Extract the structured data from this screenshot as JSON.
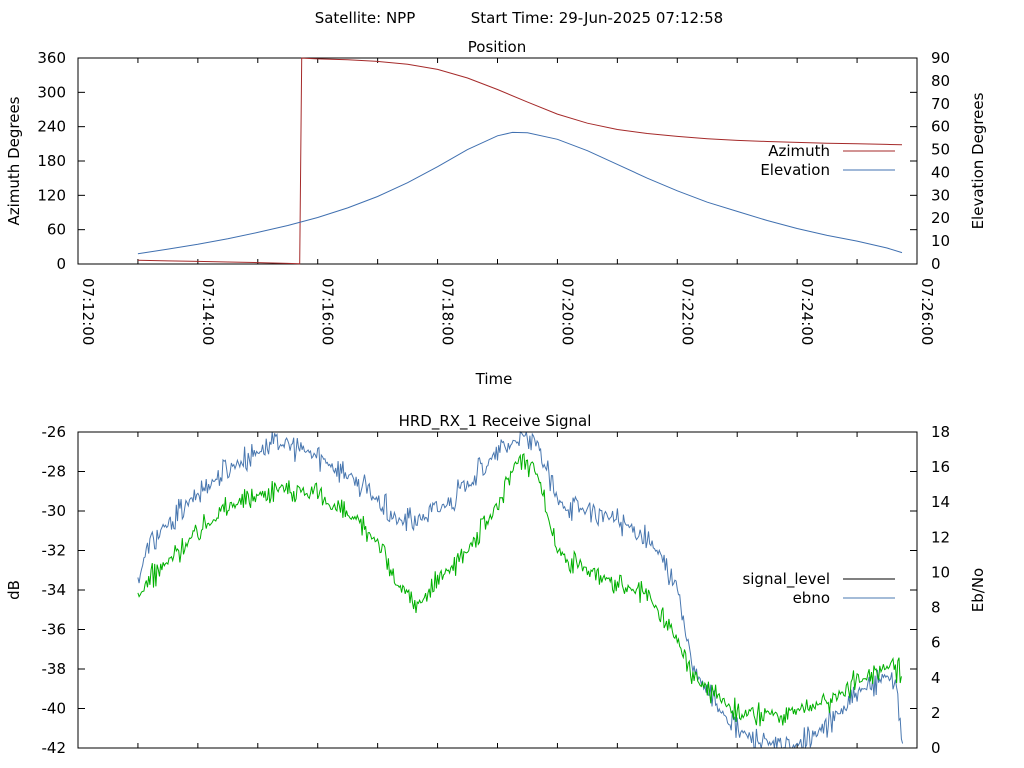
{
  "header": {
    "satellite": "Satellite: NPP",
    "start_time": "Start Time: 29-Jun-2025 07:12:58"
  },
  "chart_data": [
    {
      "type": "line",
      "title": "Position",
      "xlabel": "Time",
      "ylabel": "Azimuth Degrees",
      "y2label": "Elevation Degrees",
      "xlim": [
        "07:12:00",
        "07:26:00"
      ],
      "x_ticks": [
        "07:12:00",
        "07:14:00",
        "07:16:00",
        "07:18:00",
        "07:20:00",
        "07:22:00",
        "07:24:00",
        "07:26:00"
      ],
      "ylim": [
        0,
        360
      ],
      "y_ticks": [
        0,
        60,
        120,
        180,
        240,
        300,
        360
      ],
      "y2lim": [
        0,
        90
      ],
      "y2_ticks": [
        0,
        10,
        20,
        30,
        40,
        50,
        60,
        70,
        80,
        90
      ],
      "grid": false,
      "legend": "right",
      "series": [
        {
          "name": "Azimuth",
          "axis": "y",
          "color": "#a52a2a",
          "points": [
            [
              "07:13:00",
              6.5
            ],
            [
              "07:13:30",
              5.5
            ],
            [
              "07:14:00",
              4.5
            ],
            [
              "07:14:30",
              3.5
            ],
            [
              "07:15:00",
              2.5
            ],
            [
              "07:15:30",
              1.0
            ],
            [
              "07:15:42",
              0.5
            ],
            [
              "07:15:44",
              359.8
            ],
            [
              "07:16:00",
              358.5
            ],
            [
              "07:16:30",
              357
            ],
            [
              "07:17:00",
              354
            ],
            [
              "07:17:30",
              349
            ],
            [
              "07:18:00",
              340
            ],
            [
              "07:18:30",
              325
            ],
            [
              "07:19:00",
              305
            ],
            [
              "07:19:30",
              283
            ],
            [
              "07:20:00",
              262
            ],
            [
              "07:20:30",
              246
            ],
            [
              "07:21:00",
              235
            ],
            [
              "07:21:30",
              228
            ],
            [
              "07:22:00",
              223
            ],
            [
              "07:22:30",
              219
            ],
            [
              "07:23:00",
              216
            ],
            [
              "07:23:30",
              214
            ],
            [
              "07:24:00",
              212.5
            ],
            [
              "07:24:30",
              211
            ],
            [
              "07:25:00",
              210
            ],
            [
              "07:25:30",
              209
            ],
            [
              "07:25:45",
              208.5
            ]
          ]
        },
        {
          "name": "Elevation",
          "axis": "y2",
          "color": "#4070b0",
          "points": [
            [
              "07:13:00",
              4.5
            ],
            [
              "07:13:30",
              6.5
            ],
            [
              "07:14:00",
              8.6
            ],
            [
              "07:14:30",
              11
            ],
            [
              "07:15:00",
              13.8
            ],
            [
              "07:15:30",
              16.8
            ],
            [
              "07:16:00",
              20.3
            ],
            [
              "07:16:30",
              24.5
            ],
            [
              "07:17:00",
              29.5
            ],
            [
              "07:17:30",
              35.5
            ],
            [
              "07:18:00",
              42.5
            ],
            [
              "07:18:30",
              50
            ],
            [
              "07:19:00",
              56
            ],
            [
              "07:19:15",
              57.5
            ],
            [
              "07:19:30",
              57.3
            ],
            [
              "07:20:00",
              54.5
            ],
            [
              "07:20:30",
              49.5
            ],
            [
              "07:21:00",
              43.5
            ],
            [
              "07:21:30",
              37.5
            ],
            [
              "07:22:00",
              32
            ],
            [
              "07:22:30",
              27
            ],
            [
              "07:23:00",
              23
            ],
            [
              "07:23:30",
              19
            ],
            [
              "07:24:00",
              15.5
            ],
            [
              "07:24:30",
              12.5
            ],
            [
              "07:25:00",
              10
            ],
            [
              "07:25:30",
              7
            ],
            [
              "07:25:45",
              5
            ]
          ]
        }
      ]
    },
    {
      "type": "line",
      "title": "HRD_RX_1 Receive Signal",
      "xlabel": "",
      "ylabel": "dB",
      "y2label": "Eb/No",
      "xlim": [
        "07:12:00",
        "07:26:00"
      ],
      "ylim": [
        -42,
        -26
      ],
      "y_ticks": [
        -42,
        -40,
        -38,
        -36,
        -34,
        -32,
        -30,
        -28,
        -26
      ],
      "y2lim": [
        0,
        18
      ],
      "y2_ticks": [
        0,
        2,
        4,
        6,
        8,
        10,
        12,
        14,
        16,
        18
      ],
      "grid": false,
      "legend": "right",
      "noise_amplitude": [
        1.1,
        0.9
      ],
      "series": [
        {
          "name": "signal_level",
          "axis": "y",
          "color": "#000000",
          "points": []
        },
        {
          "name": "ebno",
          "axis": "y2",
          "color": "#4a78b0",
          "points": [
            [
              "07:13:00",
              9.5
            ],
            [
              "07:13:10",
              11.5
            ],
            [
              "07:13:30",
              12.7
            ],
            [
              "07:14:00",
              14.5
            ],
            [
              "07:14:30",
              15.9
            ],
            [
              "07:15:00",
              16.9
            ],
            [
              "07:15:20",
              17.4
            ],
            [
              "07:15:40",
              17.1
            ],
            [
              "07:16:00",
              16.6
            ],
            [
              "07:16:30",
              15.6
            ],
            [
              "07:17:00",
              14.1
            ],
            [
              "07:17:20",
              12.9
            ],
            [
              "07:17:40",
              13.0
            ],
            [
              "07:18:00",
              13.5
            ],
            [
              "07:18:30",
              15.0
            ],
            [
              "07:19:00",
              16.8
            ],
            [
              "07:19:20",
              17.6
            ],
            [
              "07:19:40",
              17.3
            ],
            [
              "07:20:00",
              14.0
            ],
            [
              "07:20:30",
              13.5
            ],
            [
              "07:21:00",
              13.0
            ],
            [
              "07:21:30",
              12.0
            ],
            [
              "07:22:00",
              9.2
            ],
            [
              "07:22:15",
              4.5
            ],
            [
              "07:22:30",
              3.2
            ],
            [
              "07:23:00",
              1.0
            ],
            [
              "07:23:30",
              0.2
            ],
            [
              "07:24:00",
              0.0
            ],
            [
              "07:24:30",
              1.3
            ],
            [
              "07:25:00",
              3.0
            ],
            [
              "07:25:30",
              4.2
            ],
            [
              "07:25:40",
              3.5
            ],
            [
              "07:25:46",
              0.0
            ]
          ]
        },
        {
          "name": "",
          "axis": "y",
          "color": "#00b000",
          "points": [
            [
              "07:13:00",
              -34.5
            ],
            [
              "07:13:10",
              -33.5
            ],
            [
              "07:13:30",
              -32.6
            ],
            [
              "07:14:00",
              -31.0
            ],
            [
              "07:14:30",
              -29.8
            ],
            [
              "07:15:00",
              -29.2
            ],
            [
              "07:15:20",
              -28.8
            ],
            [
              "07:15:40",
              -28.9
            ],
            [
              "07:16:00",
              -29.3
            ],
            [
              "07:16:30",
              -30.2
            ],
            [
              "07:17:00",
              -31.5
            ],
            [
              "07:17:20",
              -33.8
            ],
            [
              "07:17:40",
              -34.8
            ],
            [
              "07:18:00",
              -33.5
            ],
            [
              "07:18:30",
              -32.0
            ],
            [
              "07:19:00",
              -29.8
            ],
            [
              "07:19:20",
              -27.3
            ],
            [
              "07:19:40",
              -28.0
            ],
            [
              "07:20:00",
              -32.0
            ],
            [
              "07:20:30",
              -33.0
            ],
            [
              "07:21:00",
              -33.8
            ],
            [
              "07:21:30",
              -34.3
            ],
            [
              "07:22:00",
              -36.5
            ],
            [
              "07:22:15",
              -38.3
            ],
            [
              "07:22:30",
              -39.0
            ],
            [
              "07:23:00",
              -40.1
            ],
            [
              "07:23:20",
              -40.4
            ],
            [
              "07:24:00",
              -40.1
            ],
            [
              "07:24:30",
              -39.7
            ],
            [
              "07:25:00",
              -38.6
            ],
            [
              "07:25:30",
              -37.8
            ],
            [
              "07:25:45",
              -38.2
            ]
          ]
        }
      ]
    }
  ]
}
